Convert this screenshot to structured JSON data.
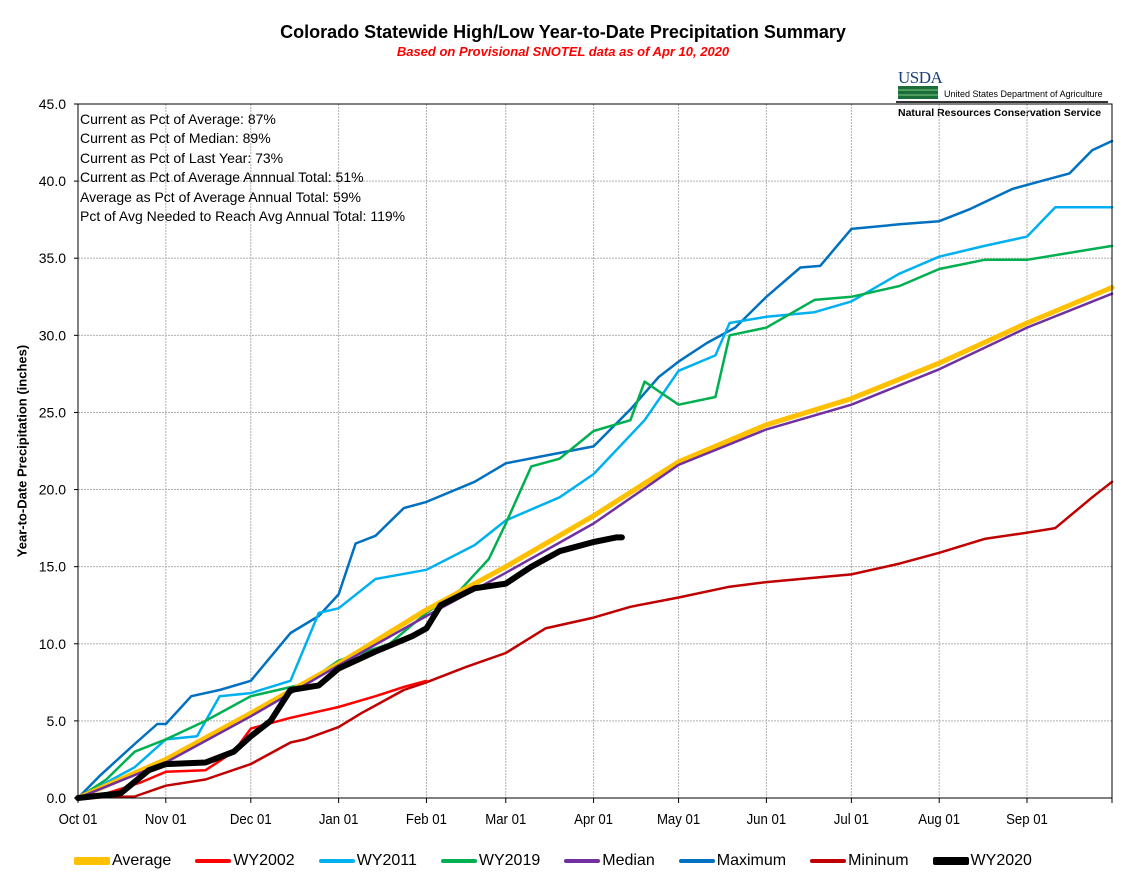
{
  "chart_data": {
    "type": "line",
    "title": "Colorado Statewide High/Low Year-to-Date Precipitation Summary",
    "subtitle": "Based on Provisional SNOTEL data as of Apr 10, 2020",
    "xlabel": "",
    "ylabel": "Year-to-Date Precipitation (inches)",
    "ylim": [
      0,
      45
    ],
    "yticks": [
      "0.0",
      "5.0",
      "10.0",
      "15.0",
      "20.0",
      "25.0",
      "30.0",
      "35.0",
      "40.0",
      "45.0"
    ],
    "ytick_values": [
      0,
      5,
      10,
      15,
      20,
      25,
      30,
      35,
      40,
      45
    ],
    "xticks": [
      "Oct 01",
      "Nov 01",
      "Dec 01",
      "Jan 01",
      "Feb 01",
      "Mar 01",
      "Apr 01",
      "May 01",
      "Jun 01",
      "Jul 01",
      "Aug 01",
      "Sep 01"
    ],
    "x_unit": "day of water year (Oct 01 = 0)",
    "xtick_days": [
      0,
      31,
      61,
      92,
      123,
      151,
      182,
      212,
      243,
      273,
      304,
      335
    ],
    "xlim": [
      0,
      365
    ],
    "grid": true,
    "legend_position": "bottom",
    "series": [
      {
        "name": "Average",
        "color": "#ffc000",
        "width": 5,
        "x": [
          0,
          31,
          61,
          92,
          123,
          151,
          182,
          212,
          243,
          273,
          304,
          335,
          365
        ],
        "values": [
          0,
          2.5,
          5.5,
          8.7,
          12.2,
          15.0,
          18.3,
          21.8,
          24.2,
          25.9,
          28.2,
          30.8,
          33.1
        ]
      },
      {
        "name": "WY2002",
        "color": "#ff0000",
        "width": 2.5,
        "x": [
          0,
          10,
          22,
          31,
          45,
          55,
          61,
          75,
          92,
          105,
          115,
          123
        ],
        "values": [
          0,
          0.3,
          1.0,
          1.7,
          1.8,
          3.0,
          4.5,
          5.2,
          5.9,
          6.6,
          7.2,
          7.6
        ]
      },
      {
        "name": "WY2011",
        "color": "#00b0f0",
        "width": 2.5,
        "x": [
          0,
          8,
          20,
          31,
          42,
          50,
          61,
          75,
          85,
          92,
          105,
          123,
          140,
          151,
          170,
          182,
          200,
          212,
          225,
          230,
          243,
          260,
          273,
          290,
          304,
          320,
          335,
          345,
          365
        ],
        "values": [
          0,
          0.8,
          2.0,
          3.8,
          4.0,
          6.6,
          6.8,
          7.6,
          12.0,
          12.3,
          14.2,
          14.8,
          16.4,
          18.0,
          19.5,
          21.0,
          24.5,
          27.7,
          28.7,
          30.8,
          31.2,
          31.5,
          32.2,
          34.0,
          35.1,
          35.8,
          36.4,
          38.3,
          38.3
        ]
      },
      {
        "name": "WY2019",
        "color": "#00b050",
        "width": 2.5,
        "x": [
          0,
          10,
          20,
          31,
          45,
          61,
          80,
          92,
          110,
          123,
          135,
          145,
          151,
          160,
          170,
          182,
          195,
          200,
          212,
          225,
          230,
          243,
          260,
          273,
          290,
          304,
          320,
          335,
          365
        ],
        "values": [
          0,
          1.2,
          3.0,
          3.8,
          5.0,
          6.6,
          7.4,
          8.9,
          10.0,
          12.0,
          13.5,
          15.5,
          17.8,
          21.5,
          22.0,
          23.8,
          24.5,
          27.0,
          25.5,
          26.0,
          30.0,
          30.5,
          32.3,
          32.5,
          33.2,
          34.3,
          34.9,
          34.9,
          35.8
        ]
      },
      {
        "name": "Median",
        "color": "#7030a0",
        "width": 2.5,
        "x": [
          0,
          31,
          61,
          92,
          123,
          151,
          182,
          212,
          243,
          273,
          304,
          335,
          365
        ],
        "values": [
          0,
          2.3,
          5.3,
          8.6,
          11.8,
          14.6,
          17.8,
          21.6,
          23.9,
          25.5,
          27.8,
          30.5,
          32.7
        ]
      },
      {
        "name": "Maximum",
        "color": "#0070c0",
        "width": 2.5,
        "x": [
          0,
          8,
          20,
          28,
          31,
          40,
          50,
          61,
          75,
          85,
          92,
          98,
          105,
          115,
          123,
          140,
          151,
          165,
          182,
          195,
          205,
          212,
          222,
          232,
          243,
          255,
          262,
          273,
          290,
          304,
          315,
          330,
          340,
          350,
          358,
          365
        ],
        "values": [
          0,
          1.5,
          3.5,
          4.8,
          4.8,
          6.6,
          7.0,
          7.6,
          10.7,
          11.8,
          13.2,
          16.5,
          17.0,
          18.8,
          19.2,
          20.5,
          21.7,
          22.2,
          22.8,
          25.2,
          27.3,
          28.3,
          29.5,
          30.5,
          32.5,
          34.4,
          34.5,
          36.9,
          37.2,
          37.4,
          38.2,
          39.5,
          40.0,
          40.5,
          42.0,
          42.6
        ]
      },
      {
        "name": "Mininum",
        "color": "#c00000",
        "width": 2.5,
        "x": [
          0,
          20,
          31,
          45,
          61,
          75,
          80,
          92,
          100,
          115,
          123,
          137,
          151,
          165,
          182,
          195,
          212,
          230,
          243,
          255,
          273,
          290,
          304,
          320,
          335,
          345,
          358,
          365
        ],
        "values": [
          0,
          0.1,
          0.8,
          1.2,
          2.2,
          3.6,
          3.8,
          4.6,
          5.5,
          7.0,
          7.5,
          8.5,
          9.4,
          11.0,
          11.7,
          12.4,
          13.0,
          13.7,
          14.0,
          14.2,
          14.5,
          15.2,
          15.9,
          16.8,
          17.2,
          17.5,
          19.5,
          20.5
        ]
      },
      {
        "name": "WY2020",
        "color": "#000000",
        "width": 6,
        "x": [
          0,
          15,
          25,
          31,
          45,
          55,
          61,
          68,
          75,
          85,
          92,
          105,
          118,
          123,
          128,
          140,
          151,
          160,
          170,
          182,
          190,
          192
        ],
        "values": [
          0,
          0.3,
          1.8,
          2.2,
          2.3,
          3.0,
          4.0,
          5.0,
          7.0,
          7.3,
          8.4,
          9.5,
          10.5,
          11.0,
          12.5,
          13.6,
          13.9,
          15.0,
          16.0,
          16.6,
          16.9,
          16.9
        ]
      }
    ]
  },
  "stats": [
    "Current as Pct of Average: 87%",
    "Current as Pct of Median: 89%",
    "Current as Pct of Last Year: 73%",
    "Current as Pct of Average Annnual Total: 51%",
    "Average as Pct of Average Annual Total: 59%",
    "Pct of Avg Needed to Reach Avg Annual Total: 119%"
  ],
  "logo": {
    "agency_abbrev": "USDA",
    "department": "United States Department of Agriculture",
    "service": "Natural Resources Conservation Service"
  }
}
